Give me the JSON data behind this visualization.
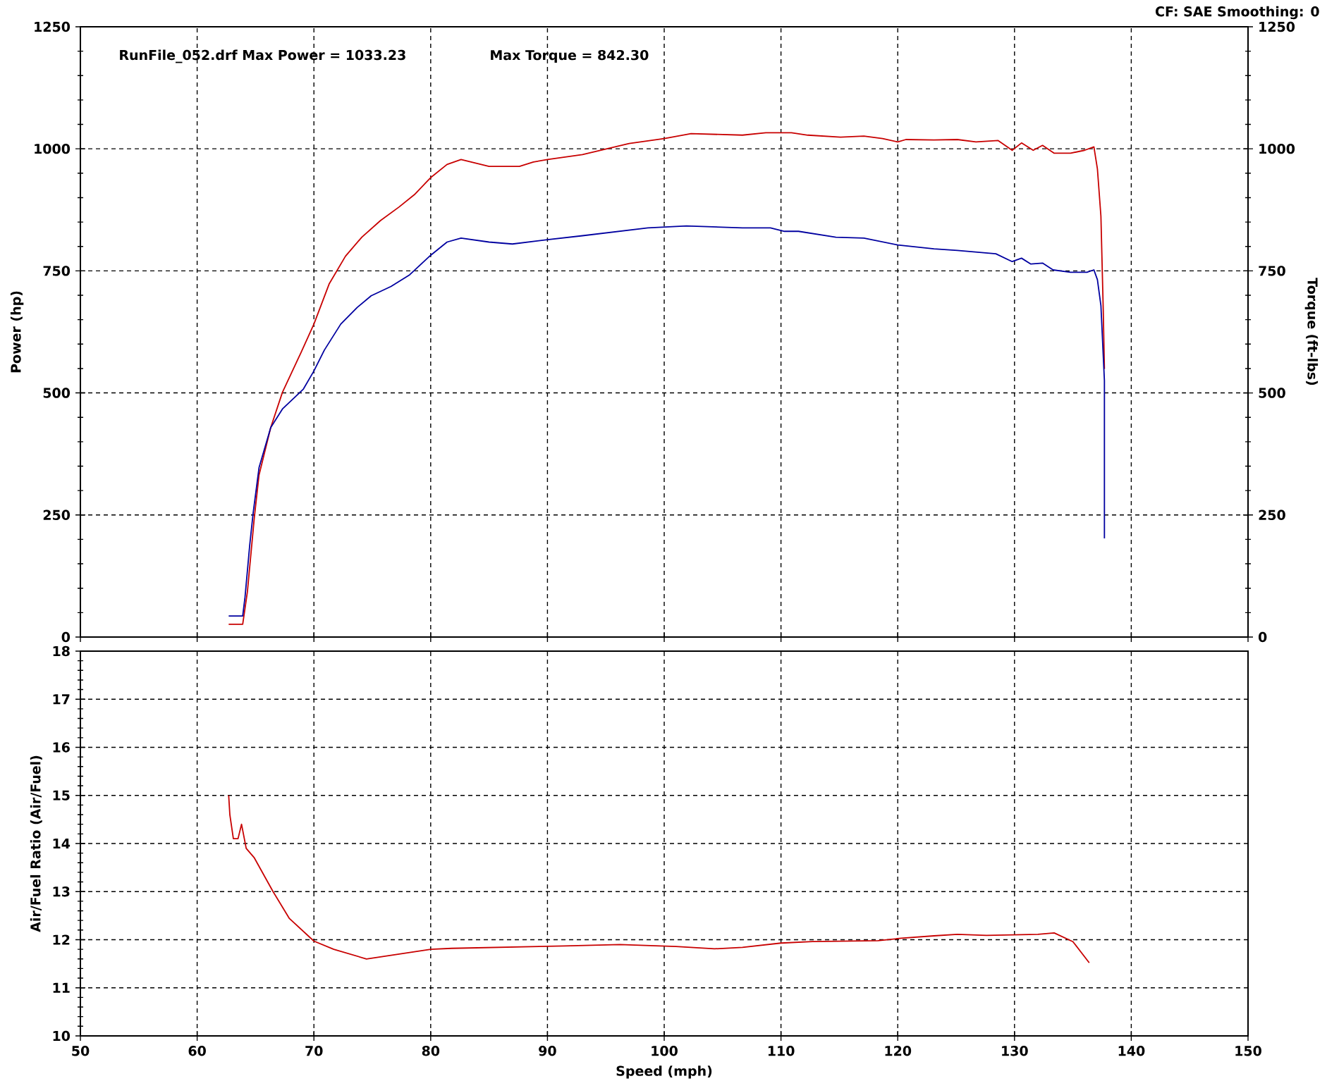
{
  "chart_data": [
    {
      "type": "line",
      "ylabel": "Power (hp)",
      "y2label": "Torque (ft-lbs)",
      "xlim": [
        50,
        150
      ],
      "xticks": [
        50,
        60,
        70,
        80,
        90,
        100,
        110,
        120,
        130,
        140,
        150
      ],
      "ylim": [
        0,
        1250
      ],
      "yticks": [
        0,
        250,
        500,
        750,
        1000,
        1250
      ],
      "y2lim": [
        0,
        1250
      ],
      "y2ticks": [
        0,
        250,
        500,
        750,
        1000,
        1250
      ],
      "tick_labels": "y",
      "grid": true,
      "annotations": [
        "CF: SAE Smoothing: 0",
        "RunFile_052.drf Max Power = 1033.23",
        "Max Torque = 842.30"
      ],
      "series": [
        {
          "color": "#c80000",
          "x": [
            62.7,
            63.9,
            64.3,
            64.9,
            65.3,
            66.3,
            67.3,
            68.9,
            70,
            71.3,
            72.7,
            74.1,
            75.7,
            77.3,
            78.6,
            80,
            81.4,
            82.6,
            85,
            87.6,
            88.8,
            90,
            93,
            97,
            100,
            102.3,
            106.7,
            108.7,
            110.9,
            112.3,
            115.1,
            117.1,
            118.7,
            120,
            120.7,
            123.1,
            125.1,
            126.7,
            128.6,
            129.8,
            130.6,
            131.6,
            132.4,
            133.4,
            134.8,
            136,
            136.8,
            137.1,
            137.4,
            137.6,
            137.7
          ],
          "values": [
            26,
            26,
            92,
            246,
            332,
            429,
            501,
            583,
            641,
            723,
            780,
            819,
            853,
            881,
            906,
            941,
            968,
            978,
            964,
            964,
            973,
            978,
            988,
            1011,
            1021,
            1031,
            1028,
            1033,
            1033,
            1028,
            1024,
            1026,
            1021,
            1014,
            1019,
            1018,
            1019,
            1014,
            1017,
            997,
            1012,
            997,
            1007,
            991,
            991,
            997,
            1004,
            959,
            862,
            670,
            549
          ]
        },
        {
          "color": "#0000a0",
          "axis": "y2",
          "x": [
            62.7,
            63.9,
            64.1,
            64.5,
            64.8,
            65.3,
            66.3,
            67.3,
            69.1,
            70,
            70.9,
            72.3,
            73.7,
            74.9,
            76.6,
            78.2,
            80,
            81.4,
            82.6,
            85,
            87,
            90,
            93,
            98.6,
            101.9,
            106.7,
            109.1,
            110.3,
            111.5,
            114.7,
            117.1,
            120,
            123.1,
            125.1,
            128.4,
            129.8,
            130.6,
            131.4,
            132.4,
            133.3,
            134.8,
            136.2,
            136.8,
            137.1,
            137.4,
            137.7,
            137.7
          ],
          "values": [
            43,
            43,
            82,
            188,
            255,
            347,
            429,
            467,
            508,
            545,
            588,
            641,
            675,
            699,
            718,
            742,
            782,
            809,
            817,
            809,
            805,
            814,
            822,
            838,
            842,
            838,
            838,
            831,
            831,
            819,
            817,
            803,
            795,
            792,
            785,
            769,
            776,
            764,
            766,
            752,
            747,
            747,
            752,
            732,
            679,
            525,
            202
          ]
        }
      ]
    },
    {
      "type": "line",
      "xlabel": "Speed (mph)",
      "ylabel": "Air/Fuel Ratio (Air/Fuel)",
      "xlim": [
        50,
        150
      ],
      "xticks": [
        50,
        60,
        70,
        80,
        90,
        100,
        110,
        120,
        130,
        140,
        150
      ],
      "ylim": [
        10,
        18
      ],
      "yticks": [
        10,
        11,
        12,
        13,
        14,
        15,
        16,
        17,
        18
      ],
      "grid": true,
      "series": [
        {
          "color": "#c80000",
          "x": [
            62.7,
            62.8,
            63.1,
            63.5,
            63.8,
            64.2,
            64.9,
            66.5,
            67.9,
            70,
            71.7,
            74.5,
            77.3,
            80,
            81.8,
            91.4,
            96.2,
            101,
            104.3,
            106.7,
            110,
            112.7,
            118.3,
            120.3,
            123.1,
            125.1,
            127.6,
            132,
            133.4,
            135,
            136.4
          ],
          "values": [
            15.0,
            14.6,
            14.1,
            14.1,
            14.4,
            13.9,
            13.7,
            13.0,
            12.44,
            11.97,
            11.8,
            11.6,
            11.7,
            11.8,
            11.82,
            11.87,
            11.9,
            11.86,
            11.81,
            11.84,
            11.93,
            11.96,
            11.98,
            12.03,
            12.08,
            12.11,
            12.09,
            12.11,
            12.14,
            11.96,
            11.52
          ]
        }
      ]
    }
  ]
}
